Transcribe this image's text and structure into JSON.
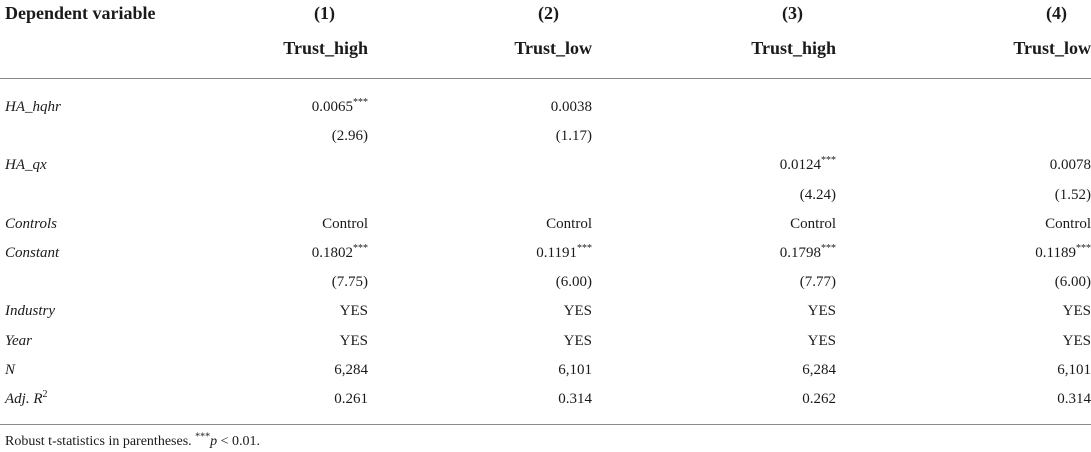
{
  "header": {
    "label": "Dependent variable",
    "columns": [
      {
        "num": "(1)",
        "name": "Trust_high"
      },
      {
        "num": "(2)",
        "name": "Trust_low"
      },
      {
        "num": "(3)",
        "name": "Trust_high"
      },
      {
        "num": "(4)",
        "name": "Trust_low"
      }
    ]
  },
  "rows": [
    {
      "label": "HA_hqhr",
      "cells": [
        "0.0065***",
        "0.0038",
        "",
        ""
      ]
    },
    {
      "label": "",
      "cells": [
        "(2.96)",
        "(1.17)",
        "",
        ""
      ]
    },
    {
      "label": "HA_qx",
      "cells": [
        "",
        "",
        "0.0124***",
        "0.0078"
      ]
    },
    {
      "label": "",
      "cells": [
        "",
        "",
        "(4.24)",
        "(1.52)"
      ]
    },
    {
      "label": "Controls",
      "cells": [
        "Control",
        "Control",
        "Control",
        "Control"
      ]
    },
    {
      "label": "Constant",
      "cells": [
        "0.1802***",
        "0.1191***",
        "0.1798***",
        "0.1189***"
      ]
    },
    {
      "label": "",
      "cells": [
        "(7.75)",
        "(6.00)",
        "(7.77)",
        "(6.00)"
      ]
    },
    {
      "label": "Industry",
      "cells": [
        "YES",
        "YES",
        "YES",
        "YES"
      ]
    },
    {
      "label": "Year",
      "cells": [
        "YES",
        "YES",
        "YES",
        "YES"
      ]
    },
    {
      "label": "N",
      "cells": [
        "6,284",
        "6,101",
        "6,284",
        "6,101"
      ]
    },
    {
      "label": "Adj. R",
      "label_sup": "2",
      "cells": [
        "0.261",
        "0.314",
        "0.262",
        "0.314"
      ]
    }
  ],
  "footnote": {
    "prefix": "Robust t-statistics in parentheses. ",
    "stars": "***",
    "p": "p",
    "suffix": " < 0.01."
  }
}
